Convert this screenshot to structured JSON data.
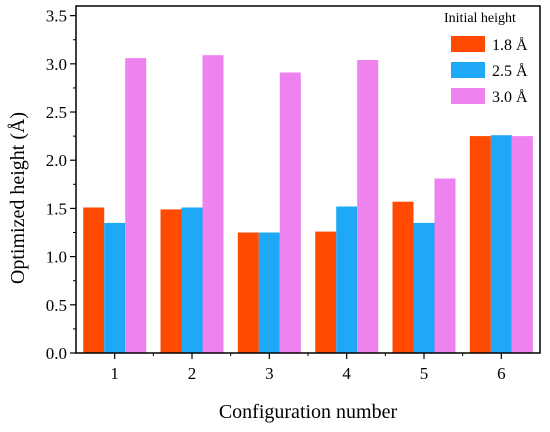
{
  "chart_data": {
    "type": "bar",
    "title": "",
    "xlabel": "Configuration number",
    "ylabel": "Optimized height (Å)",
    "ylim": [
      0.0,
      3.6
    ],
    "yticks": [
      "0.0",
      "0.5",
      "1.0",
      "1.5",
      "2.0",
      "2.5",
      "3.0",
      "3.5"
    ],
    "categories": [
      "1",
      "2",
      "3",
      "4",
      "5",
      "6"
    ],
    "legend": {
      "title": "Initial height",
      "placement": "top-right"
    },
    "grid": false,
    "series": [
      {
        "name": "1.8 Å",
        "color": "#ff4a00",
        "values": [
          1.51,
          1.49,
          1.25,
          1.26,
          1.57,
          2.25
        ]
      },
      {
        "name": "2.5 Å",
        "color": "#1ea8f5",
        "values": [
          1.35,
          1.51,
          1.25,
          1.52,
          1.35,
          2.26
        ]
      },
      {
        "name": "3.0 Å",
        "color": "#ee82ee",
        "values": [
          3.06,
          3.09,
          2.91,
          3.04,
          1.81,
          2.25
        ]
      }
    ]
  }
}
